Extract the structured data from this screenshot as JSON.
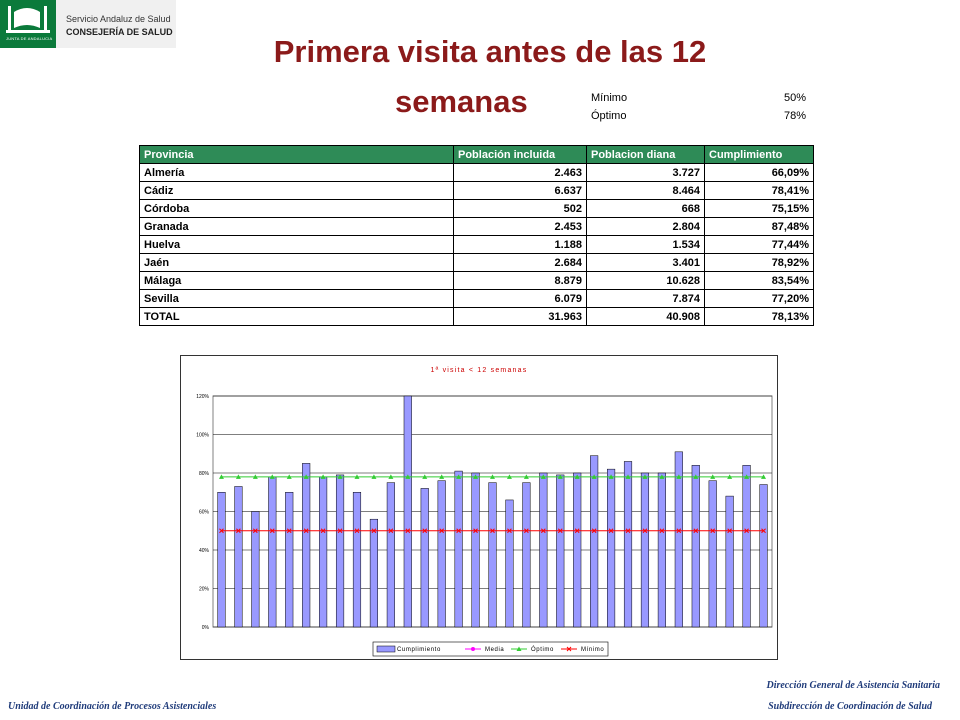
{
  "logo": {
    "small_text": "JUNTA DE ANDALUCIA",
    "line1": "Servicio Andaluz de Salud",
    "line2": "CONSEJERÍA DE SALUD"
  },
  "title_line1": "Primera visita antes de las 12",
  "title_line2": "semanas",
  "targets": {
    "minimo_label": "Mínimo",
    "minimo_value": "50%",
    "optimo_label": "Óptimo",
    "optimo_value": "78%"
  },
  "table": {
    "headers": [
      "Provincia",
      "Población incluida",
      "Poblacion diana",
      "Cumplimiento"
    ],
    "rows": [
      [
        "Almería",
        "2.463",
        "3.727",
        "66,09%"
      ],
      [
        "Cádiz",
        "6.637",
        "8.464",
        "78,41%"
      ],
      [
        "Córdoba",
        "502",
        "668",
        "75,15%"
      ],
      [
        "Granada",
        "2.453",
        "2.804",
        "87,48%"
      ],
      [
        "Huelva",
        "1.188",
        "1.534",
        "77,44%"
      ],
      [
        "Jaén",
        "2.684",
        "3.401",
        "78,92%"
      ],
      [
        "Málaga",
        "8.879",
        "10.628",
        "83,54%"
      ],
      [
        "Sevilla",
        "6.079",
        "7.874",
        "77,20%"
      ],
      [
        "TOTAL",
        "31.963",
        "40.908",
        "78,13%"
      ]
    ]
  },
  "chart_data": {
    "type": "bar",
    "title": "1ª visita < 12 semanas",
    "y_ticks": [
      "0%",
      "20%",
      "40%",
      "60%",
      "80%",
      "100%",
      "120%"
    ],
    "ylim": [
      0,
      120
    ],
    "series": [
      {
        "name": "Cumplimiento",
        "type": "bar",
        "color": "#9999ff",
        "values": [
          70,
          73,
          60,
          78,
          70,
          85,
          78,
          79,
          70,
          56,
          75,
          120,
          72,
          76,
          81,
          80,
          75,
          66,
          75,
          80,
          79,
          80,
          89,
          82,
          86,
          80,
          80,
          91,
          84,
          76,
          68,
          84,
          74
        ]
      },
      {
        "name": "Media",
        "type": "line",
        "color": "#ff00ff",
        "values": []
      },
      {
        "name": "Óptimo",
        "type": "line",
        "color": "#33cc33",
        "constant": 78
      },
      {
        "name": "Mínimo",
        "type": "line",
        "color": "#ff0000",
        "constant": 50
      }
    ],
    "grid": true,
    "legend_position": "bottom"
  },
  "footer": {
    "left": "Unidad de Coordinación de Procesos Asistenciales",
    "right1": "Dirección General de Asistencia Sanitaria",
    "right2": "Subdirección de Coordinación de Salud"
  }
}
